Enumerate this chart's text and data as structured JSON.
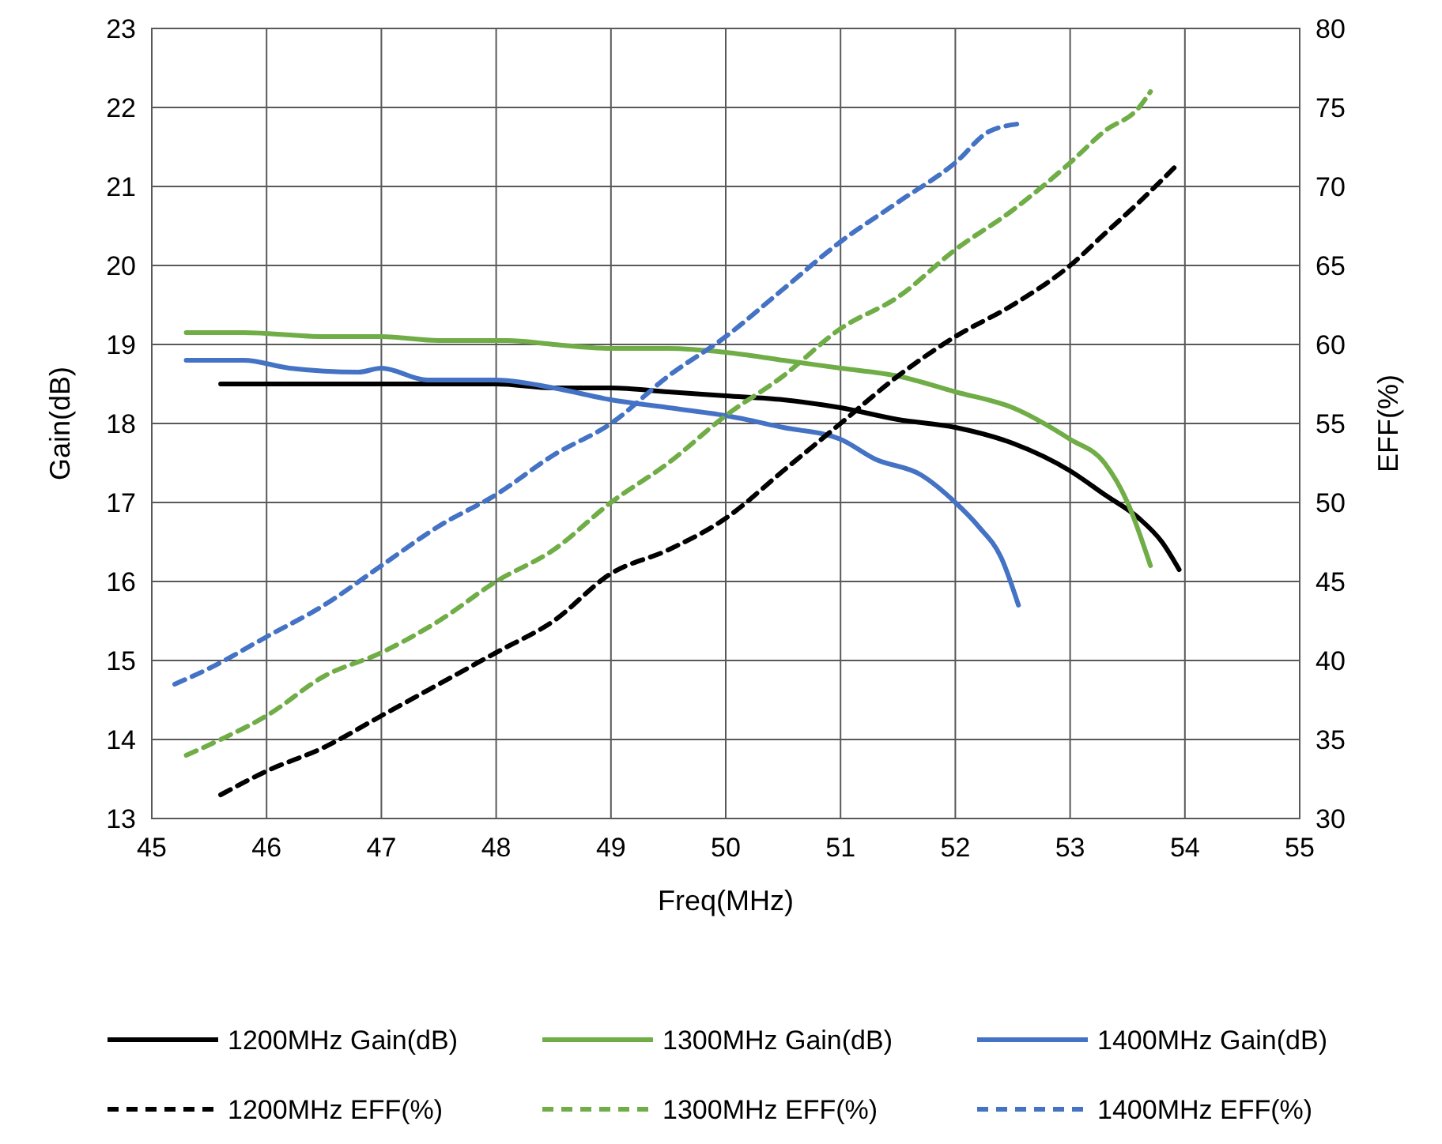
{
  "chart_data": {
    "type": "line",
    "xlabel": "Freq(MHz)",
    "ylabel": "Gain(dB)",
    "y2label": "EFF(%)",
    "xlim": [
      45,
      55
    ],
    "xticks": [
      45,
      46,
      47,
      48,
      49,
      50,
      51,
      52,
      53,
      54,
      55
    ],
    "ylim": [
      13,
      23
    ],
    "yticks": [
      13,
      14,
      15,
      16,
      17,
      18,
      19,
      20,
      21,
      22,
      23
    ],
    "y2lim": [
      30,
      80
    ],
    "y2ticks": [
      30,
      35,
      40,
      45,
      50,
      55,
      60,
      65,
      70,
      75,
      80
    ],
    "grid": true,
    "legend": "bottom",
    "series": [
      {
        "name": "1200MHz Gain(dB)",
        "color": "#000000",
        "line_style": "solid",
        "x": [
          45.6,
          46,
          46.5,
          47,
          47.5,
          48,
          48.5,
          49,
          49.5,
          50,
          50.5,
          51,
          51.5,
          52,
          52.5,
          53,
          53.3,
          53.6,
          53.8,
          53.95
        ],
        "values": [
          18.5,
          18.5,
          18.5,
          18.5,
          18.5,
          18.5,
          18.45,
          18.45,
          18.4,
          18.35,
          18.3,
          18.2,
          18.05,
          17.95,
          17.75,
          17.4,
          17.1,
          16.8,
          16.5,
          16.15
        ]
      },
      {
        "name": "1300MHz Gain(dB)",
        "color": "#70ad47",
        "line_style": "solid",
        "x": [
          45.3,
          45.8,
          46.5,
          47,
          47.5,
          48.1,
          48.5,
          49,
          49.5,
          50,
          50.5,
          51,
          51.5,
          52,
          52.5,
          53,
          53.3,
          53.5,
          53.7
        ],
        "values": [
          19.15,
          19.15,
          19.1,
          19.1,
          19.05,
          19.05,
          19.0,
          18.95,
          18.95,
          18.9,
          18.8,
          18.7,
          18.6,
          18.4,
          18.2,
          17.8,
          17.5,
          17.0,
          16.2
        ]
      },
      {
        "name": "1400MHz Gain(dB)",
        "color": "#4472c4",
        "line_style": "solid",
        "x": [
          45.3,
          45.8,
          46.2,
          46.8,
          47,
          47.4,
          48,
          48.5,
          49,
          49.5,
          50,
          50.5,
          51,
          51.3,
          51.7,
          52,
          52.2,
          52.4,
          52.55
        ],
        "values": [
          18.8,
          18.8,
          18.7,
          18.65,
          18.7,
          18.55,
          18.55,
          18.45,
          18.3,
          18.2,
          18.1,
          17.95,
          17.8,
          17.55,
          17.35,
          17.0,
          16.7,
          16.3,
          15.7
        ]
      },
      {
        "name": "1200MHz EFF(%)",
        "color": "#000000",
        "line_style": "dashed",
        "axis": "y2",
        "x": [
          45.6,
          46,
          46.5,
          47,
          47.5,
          48,
          48.5,
          49,
          49.5,
          50,
          50.5,
          51,
          51.5,
          52,
          52.5,
          53,
          53.3,
          53.6,
          53.95
        ],
        "values": [
          31.5,
          33,
          34.5,
          36.5,
          38.5,
          40.5,
          42.5,
          45.5,
          47,
          49,
          52,
          55,
          58,
          60.5,
          62.5,
          65,
          67,
          69,
          71.5
        ]
      },
      {
        "name": "1300MHz EFF(%)",
        "color": "#70ad47",
        "line_style": "dashed",
        "axis": "y2",
        "x": [
          45.3,
          45.6,
          46,
          46.5,
          47,
          47.5,
          48,
          48.5,
          49,
          49.5,
          50,
          50.5,
          51,
          51.5,
          52,
          52.5,
          53,
          53.3,
          53.6,
          53.7
        ],
        "values": [
          34,
          35,
          36.5,
          39,
          40.5,
          42.5,
          45,
          47,
          50,
          52.5,
          55.5,
          58,
          61,
          63,
          66,
          68.5,
          71.5,
          73.5,
          75,
          76
        ]
      },
      {
        "name": "1400MHz EFF(%)",
        "color": "#4472c4",
        "line_style": "dashed",
        "axis": "y2",
        "x": [
          45.2,
          45.5,
          46,
          46.5,
          47,
          47.5,
          48,
          48.5,
          49,
          49.5,
          50,
          50.5,
          51,
          51.5,
          52,
          52.3,
          52.6
        ],
        "values": [
          38.5,
          39.5,
          41.5,
          43.5,
          46,
          48.5,
          50.5,
          53,
          55,
          58,
          60.5,
          63.5,
          66.5,
          69,
          71.5,
          73.5,
          74
        ]
      }
    ]
  }
}
